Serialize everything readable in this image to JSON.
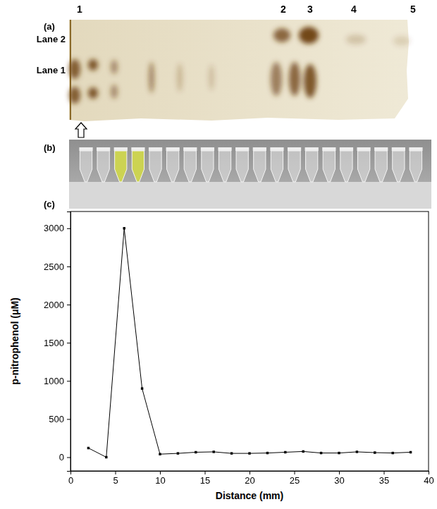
{
  "gel": {
    "panel_label": "(a)",
    "band_labels": [
      "1",
      "2",
      "3",
      "4",
      "5"
    ],
    "lane_labels": [
      "Lane 2",
      "Lane 1"
    ]
  },
  "tubes": {
    "panel_label": "(b)",
    "count": 20,
    "colored": [
      2,
      3
    ],
    "color": "#cfd64e"
  },
  "chart_data": {
    "type": "line",
    "panel_label": "(c)",
    "x_label": "Distance (mm)",
    "y_label": "p-nitrophenol (μM)",
    "x": [
      2,
      4,
      6,
      8,
      10,
      12,
      14,
      16,
      18,
      20,
      22,
      24,
      26,
      28,
      30,
      32,
      34,
      36,
      38
    ],
    "values": [
      120,
      0,
      3000,
      900,
      40,
      50,
      65,
      70,
      50,
      50,
      55,
      65,
      75,
      55,
      55,
      70,
      60,
      55,
      65
    ],
    "xlim": [
      0,
      40
    ],
    "ylim": [
      -180,
      3220
    ],
    "xticks": [
      0,
      5,
      10,
      15,
      20,
      25,
      30,
      35,
      40
    ],
    "yticks": [
      0,
      500,
      1000,
      1500,
      2000,
      2500,
      3000
    ],
    "color": "#000000",
    "marker": "square",
    "line_style": "solid"
  }
}
